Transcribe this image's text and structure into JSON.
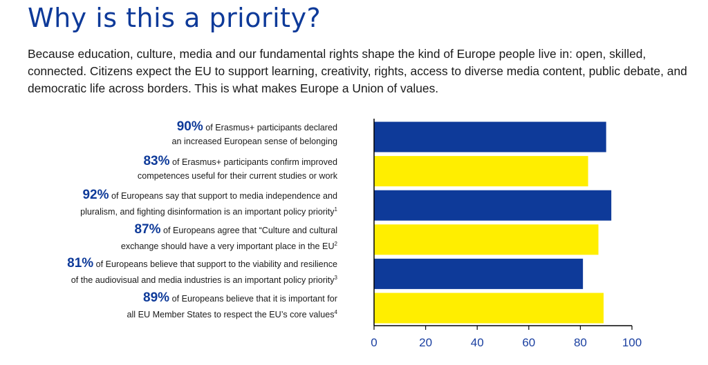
{
  "title": "Why is this a priority?",
  "intro": "Because education, culture, media and our fundamental rights shape the kind of Europe people live in: open, skilled, connected. Citizens expect the EU to support learning, creativity, rights, access to diverse media content, public debate, and democratic life across borders. This is what makes Europe a Union of values.",
  "colors": {
    "blue": "#0e3a99",
    "yellow": "#ffee00"
  },
  "labels": [
    {
      "pct": "90%",
      "line1": "of Erasmus+ participants declared",
      "line2": "an increased European sense of belonging",
      "note": ""
    },
    {
      "pct": "83%",
      "line1": "of Erasmus+ participants confirm improved",
      "line2": "competences useful for their current studies or work",
      "note": ""
    },
    {
      "pct": "92%",
      "line1": "of Europeans say that support to media independence and",
      "line2": "pluralism, and fighting disinformation is an important policy priority",
      "note": "1"
    },
    {
      "pct": "87%",
      "line1": "of Europeans agree that “Culture and cultural",
      "line2": "exchange should have a very important place in the EU",
      "note": "2"
    },
    {
      "pct": "81%",
      "line1": "of Europeans believe that support to the viability and resilience",
      "line2": "of the audiovisual and media industries is an important policy priority",
      "note": "3"
    },
    {
      "pct": "89%",
      "line1": "of Europeans believe that it is important for",
      "line2": "all EU Member States to respect the EU’s core values",
      "note": "4"
    }
  ],
  "chart_data": {
    "type": "bar",
    "orientation": "horizontal",
    "values": [
      90,
      83,
      92,
      87,
      81,
      89
    ],
    "bar_colors": [
      "#0e3a99",
      "#ffee00",
      "#0e3a99",
      "#ffee00",
      "#0e3a99",
      "#ffee00"
    ],
    "xlim": [
      0,
      100
    ],
    "xticks": [
      "0",
      "20",
      "40",
      "60",
      "80",
      "100"
    ],
    "grid": false
  }
}
